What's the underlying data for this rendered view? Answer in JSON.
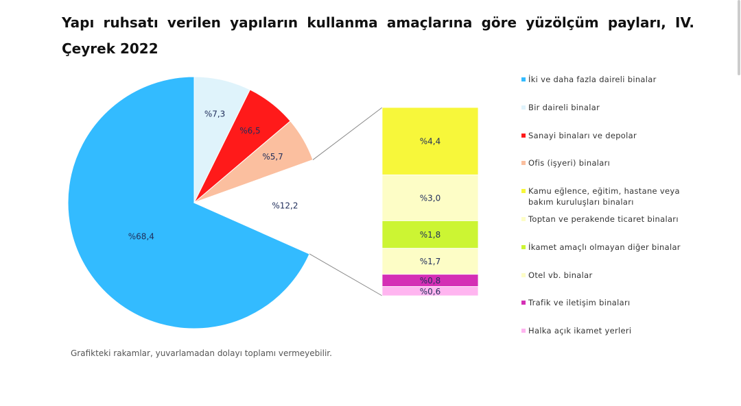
{
  "chart_data": {
    "type": "pie_of_bar",
    "title": "Yapı ruhsatı verilen yapıların kullanma amaçlarına göre yüzölçüm payları, IV. Çeyrek 2022",
    "slices": [
      {
        "name": "İki ve daha fazla daireli binalar",
        "color": "#33bbff",
        "value": 68.4,
        "value_label": "%68,4"
      },
      {
        "name": "Bir daireli binalar",
        "color": "#dff3fb",
        "value": 7.3,
        "value_label": "%7,3"
      },
      {
        "name": "Sanayi binaları ve depolar",
        "color": "#ff1a1a",
        "value": 6.5,
        "value_label": "%6,5"
      },
      {
        "name": "Ofis (işyeri) binaları",
        "color": "#fbbf9f",
        "value": 5.7,
        "value_label": "%5,7"
      }
    ],
    "other": {
      "value": 12.2,
      "value_label": "%12,2"
    },
    "bar_slices": [
      {
        "name": "Kamu eğlence, eğitim, hastane veya bakım kuruluşları binaları",
        "color": "#f7f73a",
        "value": 4.4,
        "value_label": "%4,4"
      },
      {
        "name": "Toptan ve perakende ticaret binaları",
        "color": "#fdfdc6",
        "value": 3.0,
        "value_label": "%3,0"
      },
      {
        "name": "İkamet amaçlı olmayan diğer binalar",
        "color": "#ccf533",
        "value": 1.8,
        "value_label": "%1,8"
      },
      {
        "name": "Otel vb. binalar",
        "color": "#fdfdc6",
        "value": 1.7,
        "value_label": "%1,7"
      },
      {
        "name": "Trafik ve iletişim binaları",
        "color": "#d42fb5",
        "value": 0.8,
        "value_label": "%0,8"
      },
      {
        "name": "Halka açık ikamet yerleri",
        "color": "#ffb5f0",
        "value": 0.6,
        "value_label": "%0,6"
      }
    ],
    "note": "Grafikteki rakamlar, yuvarlamadan dolayı toplamı vermeyebilir."
  }
}
